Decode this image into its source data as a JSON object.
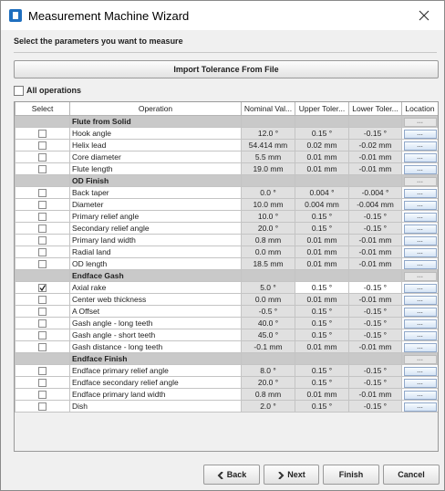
{
  "window": {
    "title": "Measurement Machine Wizard"
  },
  "instruction": "Select the parameters you want to measure",
  "import_button": "Import Tolerance From File",
  "all_operations": "All operations",
  "table": {
    "headers": [
      "Select",
      "Operation",
      "Nominal Val...",
      "Upper Toler...",
      "Lower Toler...",
      "Location"
    ],
    "rows": [
      {
        "group": "Flute from Solid",
        "location": "..."
      },
      {
        "checked": false,
        "operation": "Hook angle",
        "nominal": "12.0 °",
        "upper": "0.15 °",
        "lower": "-0.15 °",
        "location": "..."
      },
      {
        "checked": false,
        "operation": "Helix lead",
        "nominal": "54.414 mm",
        "upper": "0.02 mm",
        "lower": "-0.02 mm",
        "location": "..."
      },
      {
        "checked": false,
        "operation": "Core diameter",
        "nominal": "5.5 mm",
        "upper": "0.01 mm",
        "lower": "-0.01 mm",
        "location": "..."
      },
      {
        "checked": false,
        "operation": "Flute length",
        "nominal": "19.0 mm",
        "upper": "0.01 mm",
        "lower": "-0.01 mm",
        "location": "..."
      },
      {
        "group": "OD Finish",
        "location": "..."
      },
      {
        "checked": false,
        "operation": "Back taper",
        "nominal": "0.0 °",
        "upper": "0.004 °",
        "lower": "-0.004 °",
        "location": "..."
      },
      {
        "checked": false,
        "operation": "Diameter",
        "nominal": "10.0 mm",
        "upper": "0.004 mm",
        "lower": "-0.004 mm",
        "location": "..."
      },
      {
        "checked": false,
        "operation": "Primary relief angle",
        "nominal": "10.0 °",
        "upper": "0.15 °",
        "lower": "-0.15 °",
        "location": "..."
      },
      {
        "checked": false,
        "operation": "Secondary relief angle",
        "nominal": "20.0 °",
        "upper": "0.15 °",
        "lower": "-0.15 °",
        "location": "..."
      },
      {
        "checked": false,
        "operation": "Primary land width",
        "nominal": "0.8 mm",
        "upper": "0.01 mm",
        "lower": "-0.01 mm",
        "location": "..."
      },
      {
        "checked": false,
        "operation": "Radial land",
        "nominal": "0.0 mm",
        "upper": "0.01 mm",
        "lower": "-0.01 mm",
        "location": "..."
      },
      {
        "checked": false,
        "operation": "OD length",
        "nominal": "18.5 mm",
        "upper": "0.01 mm",
        "lower": "-0.01 mm",
        "location": "..."
      },
      {
        "group": "Endface Gash",
        "location": "..."
      },
      {
        "checked": true,
        "operation": "Axial rake",
        "nominal": "5.0 °",
        "upper": "0.15 °",
        "lower": "-0.15 °",
        "location": "..."
      },
      {
        "checked": false,
        "operation": "Center web thickness",
        "nominal": "0.0 mm",
        "upper": "0.01 mm",
        "lower": "-0.01 mm",
        "location": "..."
      },
      {
        "checked": false,
        "operation": "A Offset",
        "nominal": "-0.5 °",
        "upper": "0.15 °",
        "lower": "-0.15 °",
        "location": "..."
      },
      {
        "checked": false,
        "operation": "Gash angle - long teeth",
        "nominal": "40.0 °",
        "upper": "0.15 °",
        "lower": "-0.15 °",
        "location": "..."
      },
      {
        "checked": false,
        "operation": "Gash angle - short teeth",
        "nominal": "45.0 °",
        "upper": "0.15 °",
        "lower": "-0.15 °",
        "location": "..."
      },
      {
        "checked": false,
        "operation": "Gash distance - long teeth",
        "nominal": "-0.1 mm",
        "upper": "0.01 mm",
        "lower": "-0.01 mm",
        "location": "..."
      },
      {
        "group": "Endface Finish",
        "location": "..."
      },
      {
        "checked": false,
        "operation": "Endface primary relief angle",
        "nominal": "8.0 °",
        "upper": "0.15 °",
        "lower": "-0.15 °",
        "location": "..."
      },
      {
        "checked": false,
        "operation": "Endface secondary relief angle",
        "nominal": "20.0 °",
        "upper": "0.15 °",
        "lower": "-0.15 °",
        "location": "..."
      },
      {
        "checked": false,
        "operation": "Endface primary land width",
        "nominal": "0.8 mm",
        "upper": "0.01 mm",
        "lower": "-0.01 mm",
        "location": "..."
      },
      {
        "checked": false,
        "operation": "Dish",
        "nominal": "2.0 °",
        "upper": "0.15 °",
        "lower": "-0.15 °",
        "location": "..."
      }
    ]
  },
  "buttons": {
    "back": "Back",
    "next": "Next",
    "finish": "Finish",
    "cancel": "Cancel"
  }
}
